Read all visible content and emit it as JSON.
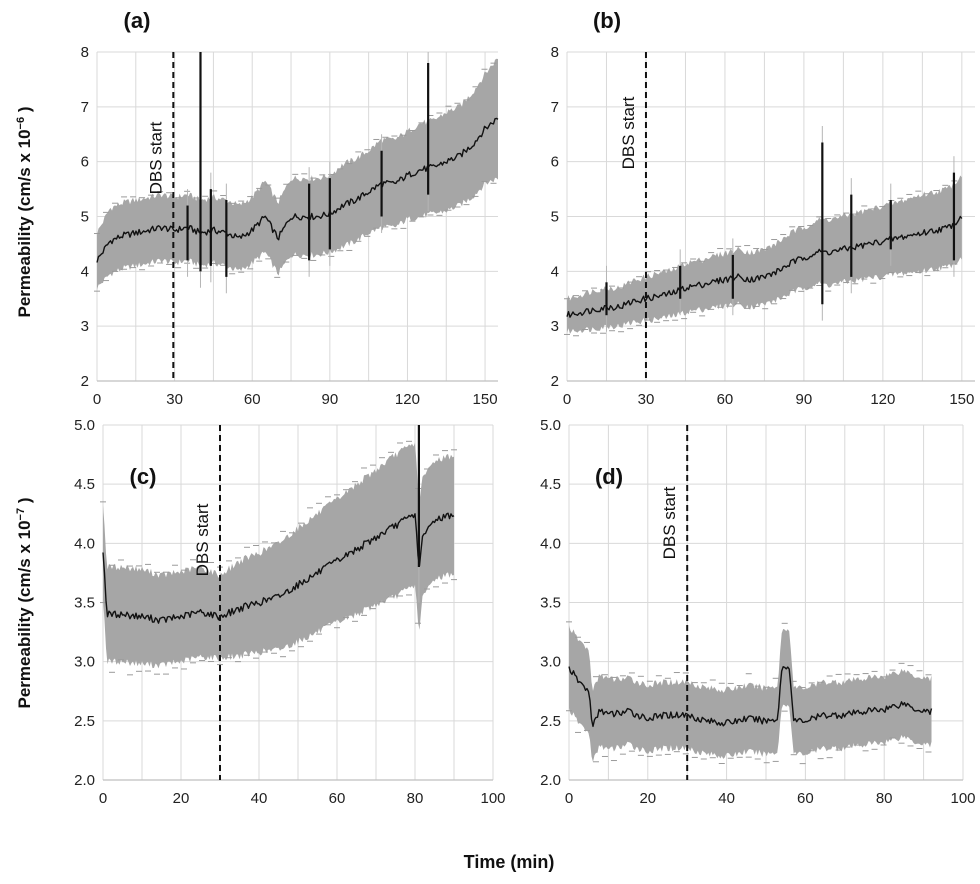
{
  "figure": {
    "xlabel": "Time (min)",
    "ylabel_top": "Permeability  (cm/s x 10",
    "ylabel_top_exp": "−6",
    "ylabel_top_close": " )",
    "ylabel_bottom": "Permeability  (cm/s x 10",
    "ylabel_bottom_exp": "−7",
    "ylabel_bottom_close": " )",
    "colors": {
      "mean_line": "#111111",
      "error_band": "#a6a6a6",
      "grid": "#d9d9d9",
      "dbs_line": "#111111"
    }
  },
  "chart_data": [
    {
      "panel": "(a)",
      "type": "line",
      "annotation": "DBS start",
      "dbs_x": 29.5,
      "xlim": [
        0,
        155
      ],
      "ylim": [
        2,
        8
      ],
      "xticks": [
        0,
        30,
        60,
        90,
        120,
        150
      ],
      "yticks": [
        2,
        3,
        4,
        5,
        6,
        7,
        8
      ],
      "grid": true,
      "x": [
        0,
        5,
        10,
        15,
        20,
        25,
        30,
        35,
        40,
        45,
        50,
        55,
        60,
        65,
        70,
        75,
        80,
        85,
        90,
        95,
        100,
        105,
        110,
        115,
        120,
        125,
        130,
        135,
        140,
        145,
        150,
        155
      ],
      "mean": [
        4.2,
        4.55,
        4.65,
        4.7,
        4.75,
        4.8,
        4.75,
        4.8,
        4.7,
        4.75,
        4.7,
        4.6,
        4.75,
        5.0,
        4.6,
        5.0,
        5.0,
        5.0,
        5.05,
        5.2,
        5.3,
        5.45,
        5.6,
        5.6,
        5.75,
        5.85,
        5.9,
        6.0,
        6.1,
        6.3,
        6.6,
        6.8
      ],
      "error": [
        0.5,
        0.6,
        0.6,
        0.6,
        0.6,
        0.6,
        0.6,
        0.6,
        0.6,
        0.6,
        0.6,
        0.6,
        0.6,
        0.65,
        0.65,
        0.7,
        0.7,
        0.7,
        0.7,
        0.75,
        0.75,
        0.75,
        0.8,
        0.8,
        0.8,
        0.85,
        0.85,
        0.9,
        0.9,
        0.95,
        1.0,
        1.1
      ],
      "spikes": [
        [
          35,
          4.2,
          5.2
        ],
        [
          40,
          4.0,
          8.0
        ],
        [
          44,
          4.1,
          5.5
        ],
        [
          50,
          3.9,
          5.3
        ],
        [
          82,
          4.2,
          5.6
        ],
        [
          90,
          4.4,
          5.7
        ],
        [
          110,
          5.0,
          6.2
        ],
        [
          128,
          5.4,
          7.8
        ]
      ]
    },
    {
      "panel": "(b)",
      "type": "line",
      "annotation": "DBS start",
      "dbs_x": 30,
      "xlim": [
        0,
        155
      ],
      "ylim": [
        2,
        8
      ],
      "xticks": [
        0,
        30,
        60,
        90,
        120,
        150
      ],
      "yticks": [
        2,
        3,
        4,
        5,
        6,
        7,
        8
      ],
      "grid": true,
      "x": [
        0,
        5,
        10,
        15,
        20,
        25,
        30,
        35,
        40,
        45,
        50,
        55,
        60,
        65,
        70,
        75,
        80,
        85,
        90,
        95,
        100,
        105,
        110,
        115,
        120,
        125,
        130,
        135,
        140,
        145,
        150
      ],
      "mean": [
        3.2,
        3.25,
        3.3,
        3.35,
        3.35,
        3.45,
        3.5,
        3.55,
        3.6,
        3.7,
        3.75,
        3.8,
        3.85,
        3.9,
        3.85,
        3.9,
        4.0,
        4.15,
        4.25,
        4.35,
        4.35,
        4.4,
        4.45,
        4.5,
        4.55,
        4.6,
        4.65,
        4.7,
        4.75,
        4.8,
        5.0
      ],
      "error": [
        0.3,
        0.32,
        0.35,
        0.35,
        0.35,
        0.38,
        0.4,
        0.42,
        0.42,
        0.45,
        0.45,
        0.47,
        0.48,
        0.5,
        0.5,
        0.5,
        0.52,
        0.55,
        0.55,
        0.58,
        0.6,
        0.6,
        0.62,
        0.62,
        0.65,
        0.65,
        0.68,
        0.7,
        0.7,
        0.72,
        0.75
      ],
      "spikes": [
        [
          15,
          3.2,
          3.8
        ],
        [
          43,
          3.5,
          4.1
        ],
        [
          63,
          3.5,
          4.3
        ],
        [
          97,
          3.4,
          6.35
        ],
        [
          108,
          3.9,
          5.4
        ],
        [
          123,
          4.4,
          5.3
        ],
        [
          147,
          4.2,
          5.8
        ]
      ]
    },
    {
      "panel": "(c)",
      "type": "line",
      "annotation": "DBS start",
      "dbs_x": 30,
      "xlim": [
        0,
        100
      ],
      "ylim": [
        2.0,
        5.0
      ],
      "xticks": [
        0,
        20,
        40,
        60,
        80,
        100
      ],
      "yticks": [
        2.0,
        2.5,
        3.0,
        3.5,
        4.0,
        4.5,
        5.0
      ],
      "grid": true,
      "x": [
        0,
        1,
        5,
        10,
        15,
        20,
        25,
        30,
        35,
        40,
        45,
        50,
        55,
        60,
        65,
        70,
        75,
        80,
        81,
        82,
        85,
        90
      ],
      "mean": [
        3.95,
        3.4,
        3.4,
        3.38,
        3.35,
        3.38,
        3.42,
        3.38,
        3.45,
        3.5,
        3.55,
        3.65,
        3.75,
        3.85,
        3.95,
        4.05,
        4.15,
        4.25,
        3.8,
        4.05,
        4.2,
        4.25
      ],
      "error": [
        0.4,
        0.4,
        0.4,
        0.4,
        0.38,
        0.38,
        0.38,
        0.35,
        0.4,
        0.42,
        0.45,
        0.48,
        0.5,
        0.52,
        0.55,
        0.57,
        0.6,
        0.6,
        0.55,
        0.5,
        0.5,
        0.5
      ],
      "spikes": [
        [
          81,
          3.8,
          5.0
        ]
      ]
    },
    {
      "panel": "(d)",
      "type": "line",
      "annotation": "DBS start",
      "dbs_x": 30,
      "xlim": [
        0,
        100
      ],
      "ylim": [
        2.0,
        5.0
      ],
      "xticks": [
        0,
        20,
        40,
        60,
        80,
        100
      ],
      "yticks": [
        2.0,
        2.5,
        3.0,
        3.5,
        4.0,
        4.5,
        5.0
      ],
      "grid": true,
      "x": [
        0,
        2,
        5,
        6,
        8,
        10,
        15,
        20,
        25,
        30,
        35,
        40,
        45,
        50,
        53,
        54,
        56,
        57,
        60,
        65,
        70,
        75,
        80,
        85,
        88,
        92
      ],
      "mean": [
        2.95,
        2.85,
        2.75,
        2.45,
        2.6,
        2.55,
        2.58,
        2.52,
        2.55,
        2.55,
        2.5,
        2.48,
        2.52,
        2.5,
        2.52,
        2.95,
        2.95,
        2.5,
        2.5,
        2.55,
        2.55,
        2.58,
        2.6,
        2.65,
        2.6,
        2.58
      ],
      "error": [
        0.35,
        0.35,
        0.35,
        0.3,
        0.3,
        0.3,
        0.28,
        0.28,
        0.28,
        0.28,
        0.28,
        0.28,
        0.28,
        0.28,
        0.28,
        0.32,
        0.32,
        0.28,
        0.28,
        0.28,
        0.28,
        0.28,
        0.28,
        0.28,
        0.28,
        0.28
      ],
      "spikes": []
    }
  ]
}
